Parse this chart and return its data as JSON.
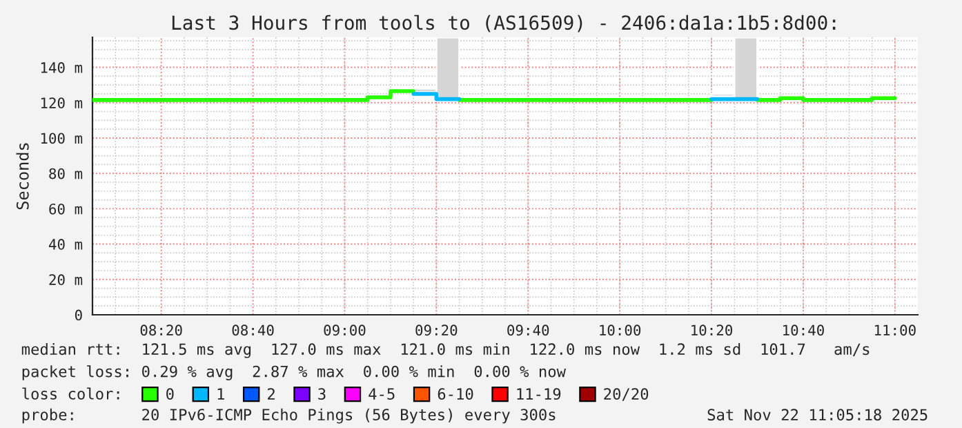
{
  "chart_data": {
    "type": "step",
    "title": "Last 3 Hours from tools to (AS16509) - 2406:da1a:1b5:8d00:",
    "ylabel": "Seconds",
    "xlim": [
      8.0833,
      11.0833
    ],
    "xticks": [
      {
        "value": 8.3333,
        "label": "08:20"
      },
      {
        "value": 8.6667,
        "label": "08:40"
      },
      {
        "value": 9.0,
        "label": "09:00"
      },
      {
        "value": 9.3333,
        "label": "09:20"
      },
      {
        "value": 9.6667,
        "label": "09:40"
      },
      {
        "value": 10.0,
        "label": "10:00"
      },
      {
        "value": 10.3333,
        "label": "10:20"
      },
      {
        "value": 10.6667,
        "label": "10:40"
      },
      {
        "value": 11.0,
        "label": "11:00"
      }
    ],
    "ylim": [
      0,
      157
    ],
    "yticks": [
      0,
      {
        "value": 20,
        "label": "20 m"
      },
      {
        "value": 40,
        "label": "40 m"
      },
      {
        "value": 60,
        "label": "60 m"
      },
      {
        "value": 80,
        "label": "80 m"
      },
      {
        "value": 100,
        "label": "100 m"
      },
      {
        "value": 120,
        "label": "120 m"
      },
      {
        "value": 140,
        "label": "140 m"
      }
    ],
    "grid": true,
    "legend": "bottom",
    "series": [
      {
        "type": "bar",
        "color": "#d6d6d6",
        "x": [
          9.2917,
          9.375,
          10.375,
          10.4583
        ],
        "base": [
          126,
          121,
          123.5,
          121
        ],
        "values": [
          2,
          36,
          1.5,
          36
        ]
      },
      {
        "name": "0",
        "color": "#26ff00",
        "x": [
          8.0833,
          9.0833,
          9.1667,
          9.25
        ],
        "values": [
          121.5,
          123,
          126.5,
          126.5
        ]
      },
      {
        "color": "#26ff00",
        "x": [
          9.4167,
          10.3333
        ],
        "values": [
          121.5,
          121.5
        ]
      },
      {
        "color": "#26ff00",
        "x": [
          10.5,
          10.5833,
          10.6667,
          10.9167,
          11.0
        ],
        "values": [
          121.5,
          122.5,
          121.5,
          122.5,
          122.5
        ]
      },
      {
        "name": "1",
        "color": "#00b8ff",
        "x": [
          9.25,
          9.3333,
          9.4167
        ],
        "values": [
          125,
          122,
          122
        ]
      },
      {
        "color": "#00b8ff",
        "x": [
          10.3333,
          10.5
        ],
        "values": [
          122,
          122
        ]
      },
      {
        "name": "2",
        "color": "#0059ff"
      },
      {
        "name": "3",
        "color": "#7e00ff"
      },
      {
        "name": "4-5",
        "color": "#ff00ff"
      },
      {
        "name": "6-10",
        "color": "#ff5500"
      },
      {
        "name": "11-19",
        "color": "#ff0000"
      },
      {
        "name": "20/20",
        "color": "#a10000"
      }
    ],
    "annotations": [
      "median rtt:  121.5 ms avg  127.0 ms max  121.0 ms min  122.0 ms now  1.2 ms sd  101.7   am/s",
      "packet loss: 0.29 % avg  2.87 % max  0.00 % min  0.00 % now",
      "loss color:",
      "probe:       20 IPv6-ICMP Echo Pings (56 Bytes) every 300s",
      "Sat Nov 22 11:05:18 2025"
    ]
  }
}
